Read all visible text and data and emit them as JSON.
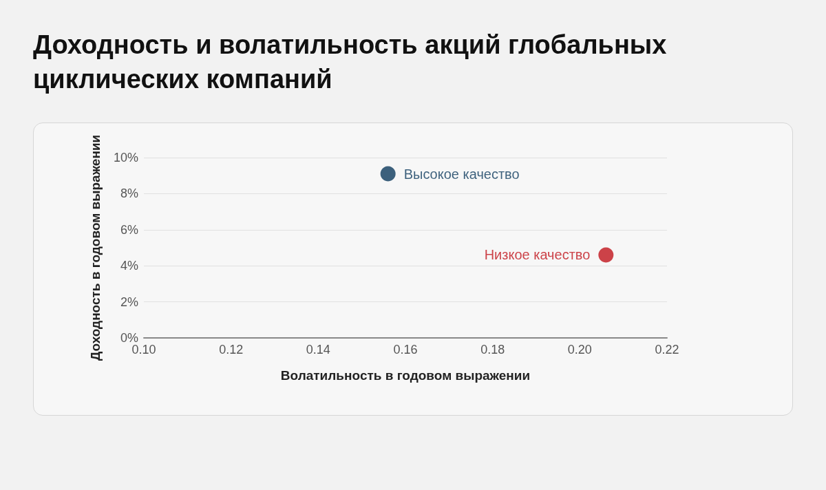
{
  "chart_data": {
    "type": "scatter",
    "title": "Доходность и волатильность акций глобальных циклических компаний",
    "xlabel": "Волатильность в годовом выражении",
    "ylabel": "Доходность в годовом выражении",
    "series": [
      {
        "name": "Высокое качество",
        "color": "#0d3a5c",
        "x": [
          0.156
        ],
        "values": [
          9.1
        ]
      },
      {
        "name": "Низкое качество",
        "color": "#c0141c",
        "x": [
          0.206
        ],
        "values": [
          4.6
        ]
      }
    ],
    "xlim": [
      0.1,
      0.22
    ],
    "xticks": [
      {
        "value": 0.1,
        "label": "0.10"
      },
      {
        "value": 0.12,
        "label": "0.12"
      },
      {
        "value": 0.14,
        "label": "0.14"
      },
      {
        "value": 0.16,
        "label": "0.16"
      },
      {
        "value": 0.18,
        "label": "0.18"
      },
      {
        "value": 0.2,
        "label": "0.20"
      },
      {
        "value": 0.22,
        "label": "0.22"
      }
    ],
    "ylim": [
      0,
      10
    ],
    "yticks": [
      {
        "value": 0,
        "label": "0%"
      },
      {
        "value": 2,
        "label": "2%"
      },
      {
        "value": 4,
        "label": "4%"
      },
      {
        "value": 6,
        "label": "6%"
      },
      {
        "value": 8,
        "label": "8%"
      },
      {
        "value": 10,
        "label": "10%"
      }
    ],
    "grid": "y",
    "legend": false,
    "marker": "circle"
  }
}
